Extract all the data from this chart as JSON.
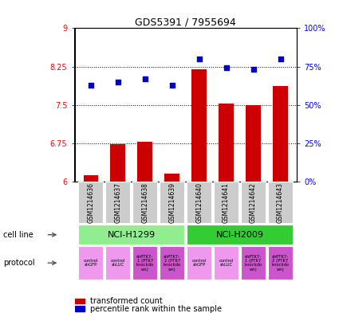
{
  "title": "GDS5391 / 7955694",
  "samples": [
    "GSM1214636",
    "GSM1214637",
    "GSM1214638",
    "GSM1214639",
    "GSM1214640",
    "GSM1214641",
    "GSM1214642",
    "GSM1214643"
  ],
  "bar_values": [
    6.13,
    6.73,
    6.78,
    6.15,
    8.19,
    7.52,
    7.5,
    7.87
  ],
  "dot_values": [
    63,
    65,
    67,
    63,
    80,
    74,
    73,
    80
  ],
  "bar_color": "#cc0000",
  "dot_color": "#0000cc",
  "ylim_left": [
    6,
    9
  ],
  "ylim_right": [
    0,
    100
  ],
  "yticks_left": [
    6,
    6.75,
    7.5,
    8.25,
    9
  ],
  "yticks_right": [
    0,
    25,
    50,
    75,
    100
  ],
  "ytick_labels_left": [
    "6",
    "6.75",
    "7.5",
    "8.25",
    "9"
  ],
  "ytick_labels_right": [
    "0%",
    "25%",
    "50%",
    "75%",
    "100%"
  ],
  "cell_line_groups": [
    {
      "label": "NCI-H1299",
      "start": 0,
      "end": 3,
      "color": "#90ee90"
    },
    {
      "label": "NCI-H2009",
      "start": 4,
      "end": 7,
      "color": "#33cc33"
    }
  ],
  "protocols": [
    {
      "label": "control\nshGFP",
      "color": "#ee99ee"
    },
    {
      "label": "control\nshLUC",
      "color": "#ee99ee"
    },
    {
      "label": "shPTK7-\n1 (PTK7\nknockdo\nwn)",
      "color": "#cc55cc"
    },
    {
      "label": "shPTK7-\n2 (PTK7\nknockdo\nwn)",
      "color": "#cc55cc"
    },
    {
      "label": "control\nshGFP",
      "color": "#ee99ee"
    },
    {
      "label": "control\nshLUC",
      "color": "#ee99ee"
    },
    {
      "label": "shPTK7-\n1 (PTK7\nknockdo\nwn)",
      "color": "#cc55cc"
    },
    {
      "label": "shPTK7-\n2 (PTK7\nknockdo\nwn)",
      "color": "#cc55cc"
    }
  ],
  "legend_bar_label": "transformed count",
  "legend_dot_label": "percentile rank within the sample",
  "cell_line_label": "cell line",
  "protocol_label": "protocol",
  "sample_box_color": "#cccccc",
  "fig_width": 4.25,
  "fig_height": 3.93,
  "dpi": 100
}
